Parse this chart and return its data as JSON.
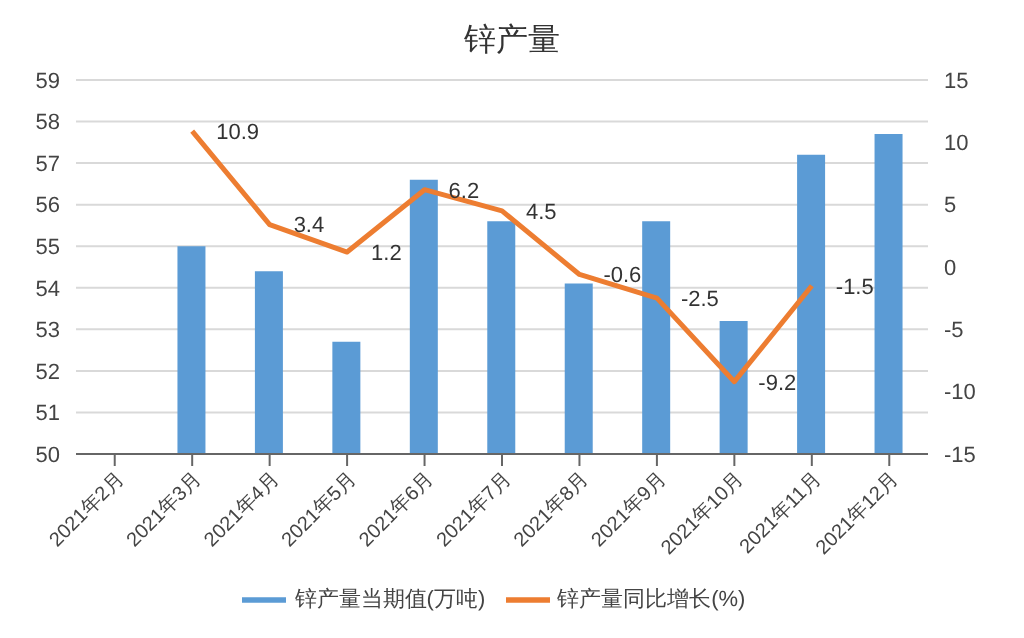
{
  "chart_data": {
    "type": "bar",
    "title": "锌产量",
    "categories": [
      "2021年2月",
      "2021年3月",
      "2021年4月",
      "2021年5月",
      "2021年6月",
      "2021年7月",
      "2021年8月",
      "2021年9月",
      "2021年10月",
      "2021年11月",
      "2021年12月"
    ],
    "series": [
      {
        "name": "锌产量当期值(万吨)",
        "color": "#5b9bd5",
        "values": [
          null,
          55.0,
          54.4,
          52.7,
          56.6,
          55.6,
          54.1,
          55.6,
          53.2,
          57.2,
          57.7
        ]
      },
      {
        "name": "锌产量同比增长(%)",
        "color": "#ed7d31",
        "type": "line",
        "axis": "y2",
        "values": [
          null,
          10.9,
          3.4,
          1.2,
          6.2,
          4.5,
          -0.6,
          -2.5,
          -9.2,
          -1.5,
          null
        ],
        "data_labels": true
      }
    ],
    "ylim": [
      50,
      59
    ],
    "yticks": [
      50,
      51,
      52,
      53,
      54,
      55,
      56,
      57,
      58,
      59
    ],
    "y2lim": [
      -15,
      15
    ],
    "y2ticks": [
      -15,
      -10,
      -5,
      0,
      5,
      10,
      15
    ],
    "grid": "y",
    "legend": "bottom",
    "marker": "none"
  }
}
